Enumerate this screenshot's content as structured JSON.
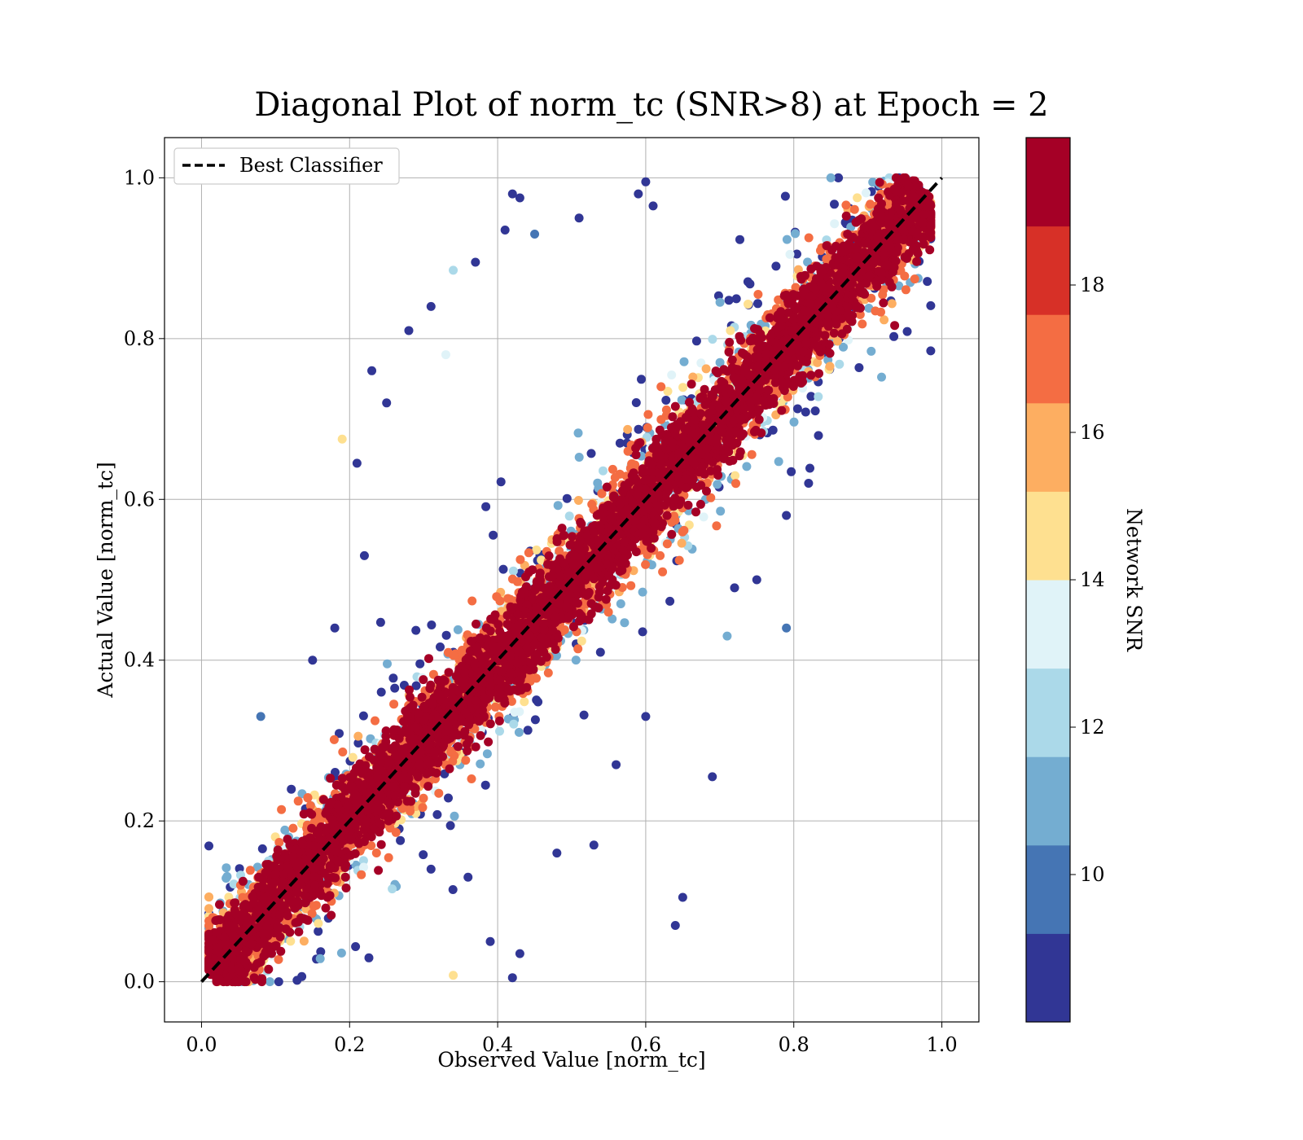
{
  "chart_data": {
    "type": "scatter",
    "title": "Diagonal Plot of norm_tc (SNR>8) at Epoch = 2",
    "xlabel": "Observed Value [norm_tc]",
    "ylabel": "Actual Value [norm_tc]",
    "xlim": [
      -0.05,
      1.05
    ],
    "ylim": [
      -0.05,
      1.05
    ],
    "x_ticks": [
      "0.0",
      "0.2",
      "0.4",
      "0.6",
      "0.8",
      "1.0"
    ],
    "y_ticks": [
      "0.0",
      "0.2",
      "0.4",
      "0.6",
      "0.8",
      "1.0"
    ],
    "grid": true,
    "legend": {
      "position": "upper-left",
      "entries": [
        {
          "label": "Best Classifier",
          "style": "black dashed line"
        }
      ]
    },
    "reference_line": {
      "x": [
        0,
        1
      ],
      "y": [
        0,
        1
      ],
      "label": "Best Classifier"
    },
    "colorbar": {
      "label": "Network SNR",
      "range": [
        8,
        20
      ],
      "ticks": [
        "10",
        "12",
        "14",
        "16",
        "18"
      ],
      "colors": [
        "#313695",
        "#4575b4",
        "#74add1",
        "#abd9e9",
        "#e0f3f8",
        "#fee090",
        "#fdae61",
        "#f46d43",
        "#d73027",
        "#a50026"
      ]
    },
    "series": [
      {
        "description_points": "scatter of observed vs actual norm_tc colored by network SNR, densely concentrated along y = x with spread increasing for lower SNR",
        "outliers": [
          {
            "x": 0.42,
            "y": 0.98,
            "snr": 9
          },
          {
            "x": 0.43,
            "y": 0.975,
            "snr": 9
          },
          {
            "x": 0.6,
            "y": 0.995,
            "snr": 9
          },
          {
            "x": 0.59,
            "y": 0.98,
            "snr": 9
          },
          {
            "x": 0.61,
            "y": 0.965,
            "snr": 9
          },
          {
            "x": 0.41,
            "y": 0.935,
            "snr": 9
          },
          {
            "x": 0.51,
            "y": 0.95,
            "snr": 9
          },
          {
            "x": 0.37,
            "y": 0.895,
            "snr": 9
          },
          {
            "x": 0.34,
            "y": 0.885,
            "snr": 12
          },
          {
            "x": 0.31,
            "y": 0.84,
            "snr": 9
          },
          {
            "x": 0.23,
            "y": 0.76,
            "snr": 9
          },
          {
            "x": 0.28,
            "y": 0.81,
            "snr": 9
          },
          {
            "x": 0.21,
            "y": 0.645,
            "snr": 9
          },
          {
            "x": 0.19,
            "y": 0.675,
            "snr": 14
          },
          {
            "x": 0.79,
            "y": 0.44,
            "snr": 10
          },
          {
            "x": 0.71,
            "y": 0.43,
            "snr": 11
          },
          {
            "x": 0.69,
            "y": 0.255,
            "snr": 9
          },
          {
            "x": 0.65,
            "y": 0.105,
            "snr": 9
          },
          {
            "x": 0.64,
            "y": 0.07,
            "snr": 9
          },
          {
            "x": 0.42,
            "y": 0.005,
            "snr": 9
          },
          {
            "x": 0.34,
            "y": 0.008,
            "snr": 14
          },
          {
            "x": 0.43,
            "y": 0.035,
            "snr": 9
          },
          {
            "x": 0.08,
            "y": 0.33,
            "snr": 10
          },
          {
            "x": 0.75,
            "y": 0.5,
            "snr": 9
          },
          {
            "x": 0.79,
            "y": 0.58,
            "snr": 9
          },
          {
            "x": 0.82,
            "y": 0.62,
            "snr": 9
          },
          {
            "x": 0.53,
            "y": 0.17,
            "snr": 9
          },
          {
            "x": 0.48,
            "y": 0.16,
            "snr": 9
          },
          {
            "x": 0.72,
            "y": 0.49,
            "snr": 9
          },
          {
            "x": 0.25,
            "y": 0.72,
            "snr": 9
          },
          {
            "x": 0.33,
            "y": 0.78,
            "snr": 13
          },
          {
            "x": 0.45,
            "y": 0.93,
            "snr": 10
          },
          {
            "x": 0.18,
            "y": 0.44,
            "snr": 9
          },
          {
            "x": 0.15,
            "y": 0.4,
            "snr": 9
          },
          {
            "x": 0.22,
            "y": 0.53,
            "snr": 9
          },
          {
            "x": 0.6,
            "y": 0.33,
            "snr": 9
          },
          {
            "x": 0.56,
            "y": 0.27,
            "snr": 9
          },
          {
            "x": 0.31,
            "y": 0.14,
            "snr": 9
          },
          {
            "x": 0.36,
            "y": 0.13,
            "snr": 9
          },
          {
            "x": 0.39,
            "y": 0.05,
            "snr": 9
          }
        ]
      }
    ]
  }
}
